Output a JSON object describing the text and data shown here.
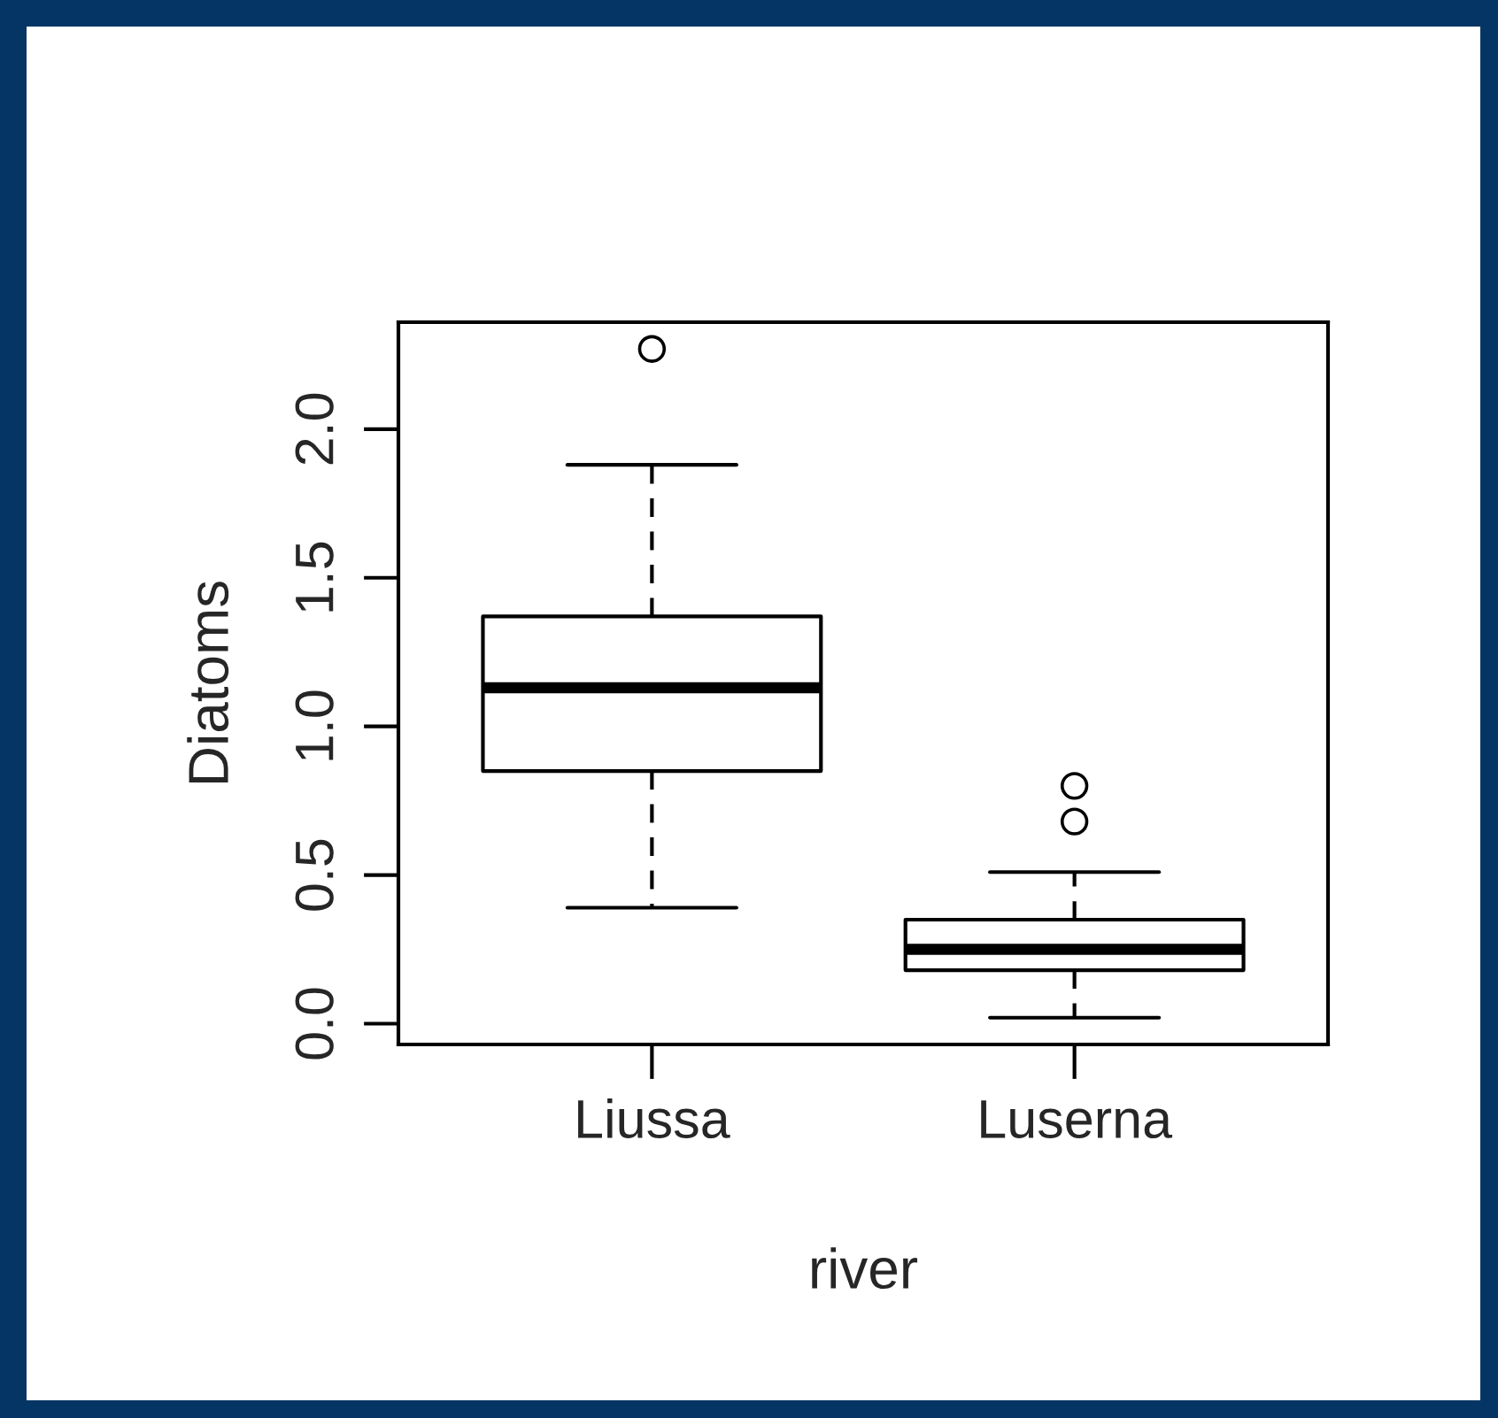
{
  "chart_data": {
    "type": "box",
    "xlabel": "river",
    "ylabel": "Diatoms",
    "categories": [
      "Liussa",
      "Luserna"
    ],
    "boxes": [
      {
        "low": 0.39,
        "q1": 0.85,
        "median": 1.13,
        "q3": 1.37,
        "high": 1.88,
        "outliers": [
          2.27
        ]
      },
      {
        "low": 0.02,
        "q1": 0.18,
        "median": 0.25,
        "q3": 0.35,
        "high": 0.51,
        "outliers": [
          0.68,
          0.8
        ]
      }
    ],
    "ylim": [
      -0.07,
      2.36
    ],
    "yticks": [
      {
        "value": 0,
        "label": "0.0"
      },
      {
        "value": 0.5,
        "label": "0.5"
      },
      {
        "value": 1,
        "label": "1.0"
      },
      {
        "value": 1.5,
        "label": "1.5"
      },
      {
        "value": 2,
        "label": "2.0"
      }
    ]
  }
}
